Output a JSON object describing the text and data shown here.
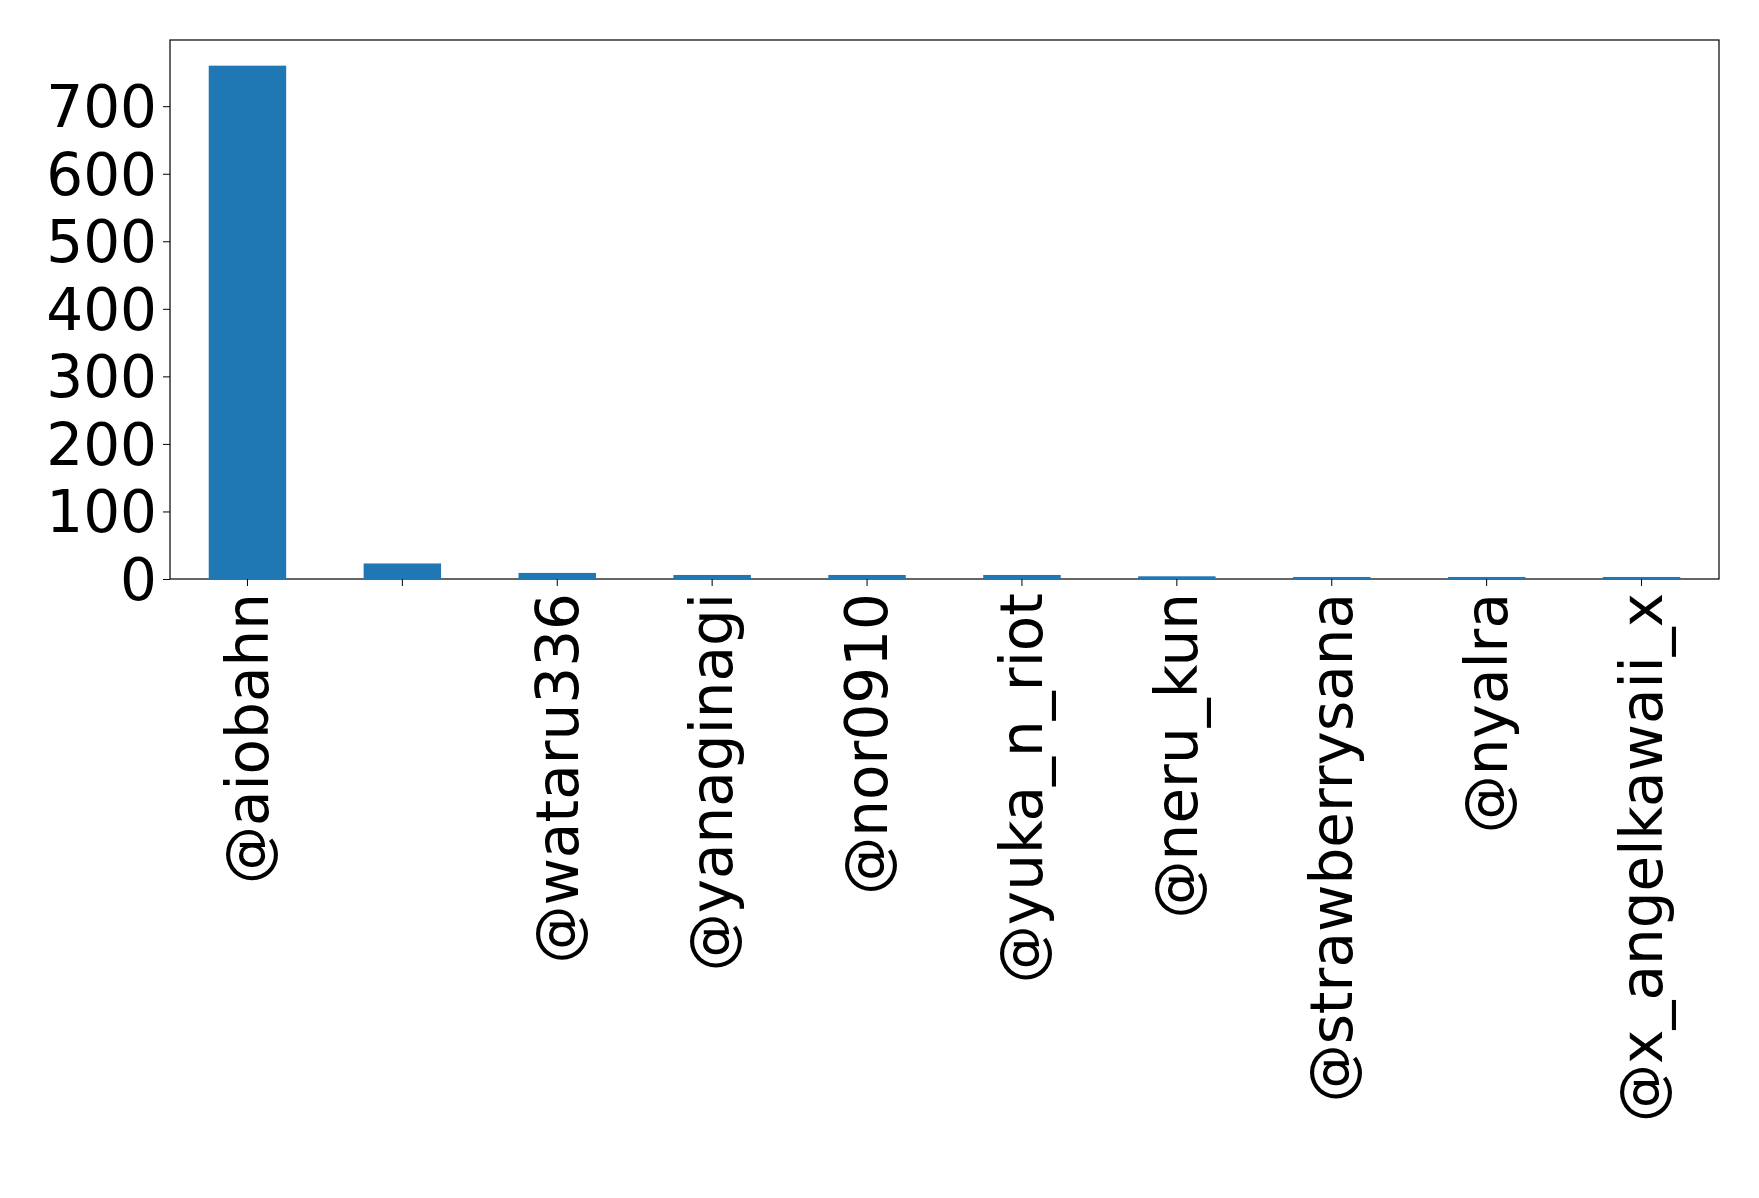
{
  "chart_data": {
    "type": "bar",
    "categories": [
      "@aiobahn",
      null,
      "@wataru336",
      "@yanaginagi",
      "@nor0910",
      "@yuka_n_riot",
      "@neru_kun",
      "@strawberrysana",
      "@nyalra",
      "@x_angelkawaii_x"
    ],
    "values": [
      760,
      23,
      9,
      6,
      6,
      6,
      4,
      3,
      3,
      3
    ],
    "color": "#1f77b4",
    "ylim": [
      0,
      798
    ],
    "yticks": [
      0,
      100,
      200,
      300,
      400,
      500,
      600,
      700
    ],
    "grid": false
  }
}
